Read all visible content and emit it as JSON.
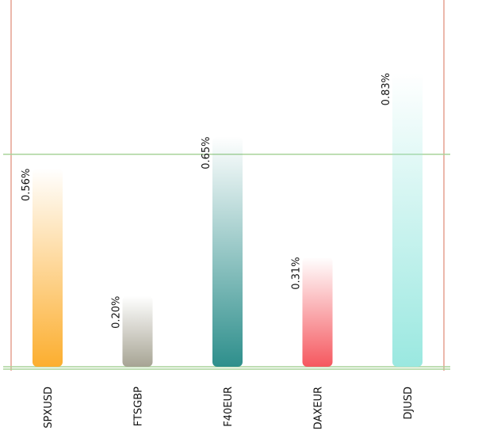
{
  "chart_data": {
    "type": "bar",
    "categories": [
      "SPXUSD",
      "FTSGBP",
      "F40EUR",
      "DAXEUR",
      "DJUSD"
    ],
    "values": [
      0.56,
      0.2,
      0.65,
      0.31,
      0.83
    ],
    "data_labels": [
      "0.56%",
      "0.20%",
      "0.65%",
      "0.31%",
      "0.83%"
    ],
    "title": "",
    "xlabel": "",
    "ylabel": "",
    "ylim": [
      0,
      0.83
    ],
    "reference_lines": [
      0,
      0.6
    ],
    "legend": "none",
    "grid": false,
    "colors": {
      "bars": [
        "#fcae2f",
        "#a7a494",
        "#2e8f8c",
        "#f5585f",
        "#9ae8e0"
      ],
      "horizontal_lines": "#a9d39a",
      "vertical_borders": "#e6a191"
    }
  }
}
